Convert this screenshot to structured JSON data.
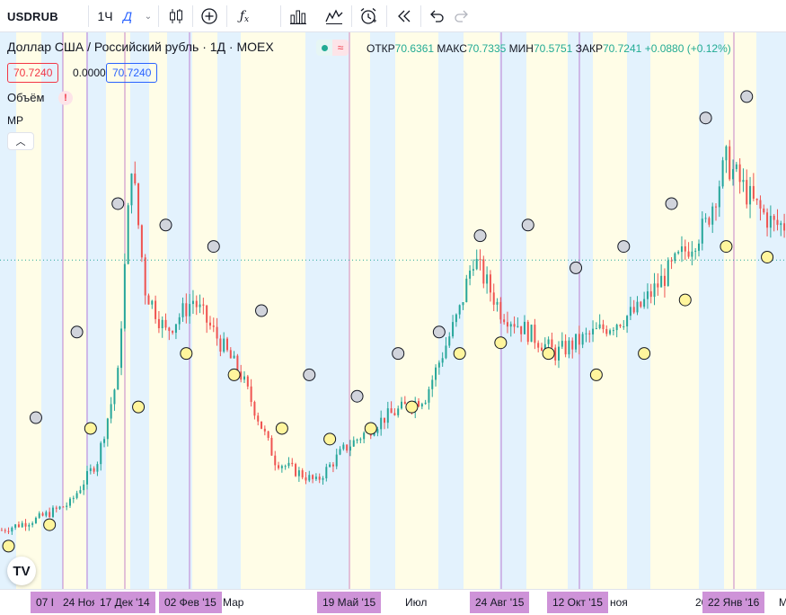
{
  "toolbar": {
    "symbol": "USDRUB",
    "interval_hours": "1Ч",
    "interval_day": "Д",
    "icons": [
      "candles-icon",
      "add-compare-icon",
      "indicators-icon",
      "templates-icon",
      "replay-patterns-icon",
      "alert-icon",
      "rewind-icon",
      "undo-icon",
      "redo-icon"
    ]
  },
  "legend": {
    "title": "Доллар США / Российский рубль · 1Д · MOEX",
    "ohlc": {
      "open_label": "ОТКР",
      "open": "70.6361",
      "high_label": "МАКС",
      "high": "70.7335",
      "low_label": "МИН",
      "low": "70.5751",
      "close_label": "ЗАКР",
      "close": "70.7241",
      "change": "+0.0880 (+0.12%)"
    },
    "price_box": "70.7240",
    "spread": "0.0000",
    "price_box2": "70.7240",
    "volume_label": "Объём",
    "volume_warning": "!",
    "indicator_label": "MP",
    "collapse_icon": "chevron-up-icon"
  },
  "logo": "TV",
  "colors": {
    "up": "#26a69a",
    "down": "#ef5350",
    "band_blue": "#e3f2fd",
    "band_yellow": "#fffde7",
    "marker_grey": "#d1d4dc",
    "marker_yellow": "#fff59d",
    "vline": "#9c27b0",
    "axis_marker": "#ce93d8"
  },
  "xaxis": {
    "labels": [
      "Мар",
      "Июл",
      "ноя",
      "20",
      "М"
    ],
    "markers": [
      "07 I",
      "24 Ноя",
      "17 Дек '14",
      "02 Фев '15",
      "19 Май '15",
      "24 Авг '15",
      "12 Окт '15",
      "22 Янв '16"
    ]
  },
  "chart_data": {
    "type": "candlestick",
    "instrument": "USDRUB",
    "timeframe": "1Д",
    "x_axis_labels": [
      "07 I",
      "24 Ноя",
      "17 Дек '14",
      "02 Фев '15",
      "Мар",
      "19 Май '15",
      "Июл",
      "24 Авг '15",
      "12 Окт '15",
      "ноя",
      "20",
      "22 Янв '16",
      "М"
    ],
    "last_price": 70.7241,
    "price_path_approx": [
      [
        0,
        45.5
      ],
      [
        10,
        46.5
      ],
      [
        20,
        48.0
      ],
      [
        28,
        52.0
      ],
      [
        34,
        60.0
      ],
      [
        38,
        80.0
      ],
      [
        42,
        68.0
      ],
      [
        48,
        64.0
      ],
      [
        56,
        67.0
      ],
      [
        62,
        64.0
      ],
      [
        70,
        60.0
      ],
      [
        80,
        52.0
      ],
      [
        92,
        50.0
      ],
      [
        100,
        53.0
      ],
      [
        112,
        56.0
      ],
      [
        124,
        58.0
      ],
      [
        134,
        66.0
      ],
      [
        138,
        71.0
      ],
      [
        146,
        66.0
      ],
      [
        154,
        64.0
      ],
      [
        162,
        62.0
      ],
      [
        174,
        64.0
      ],
      [
        186,
        66.0
      ],
      [
        196,
        70.0
      ],
      [
        206,
        74.0
      ],
      [
        212,
        80.0
      ],
      [
        220,
        76.0
      ],
      [
        226,
        74.0
      ]
    ],
    "high_markers": [
      [
        10,
        56.0
      ],
      [
        22,
        64.0
      ],
      [
        34,
        76.0
      ],
      [
        48,
        74.0
      ],
      [
        62,
        72.0
      ],
      [
        76,
        66.0
      ],
      [
        90,
        60.0
      ],
      [
        104,
        58.0
      ],
      [
        116,
        62.0
      ],
      [
        128,
        64.0
      ],
      [
        140,
        73.0
      ],
      [
        154,
        74.0
      ],
      [
        168,
        70.0
      ],
      [
        182,
        72.0
      ],
      [
        196,
        76.0
      ],
      [
        206,
        84.0
      ],
      [
        218,
        86.0
      ]
    ],
    "low_markers": [
      [
        2,
        44.0
      ],
      [
        14,
        46.0
      ],
      [
        26,
        55.0
      ],
      [
        40,
        57.0
      ],
      [
        54,
        62.0
      ],
      [
        68,
        60.0
      ],
      [
        82,
        55.0
      ],
      [
        96,
        54.0
      ],
      [
        108,
        55.0
      ],
      [
        120,
        57.0
      ],
      [
        134,
        62.0
      ],
      [
        146,
        63.0
      ],
      [
        160,
        62.0
      ],
      [
        174,
        60.0
      ],
      [
        188,
        62.0
      ],
      [
        200,
        67.0
      ],
      [
        212,
        72.0
      ],
      [
        224,
        71.0
      ]
    ]
  }
}
